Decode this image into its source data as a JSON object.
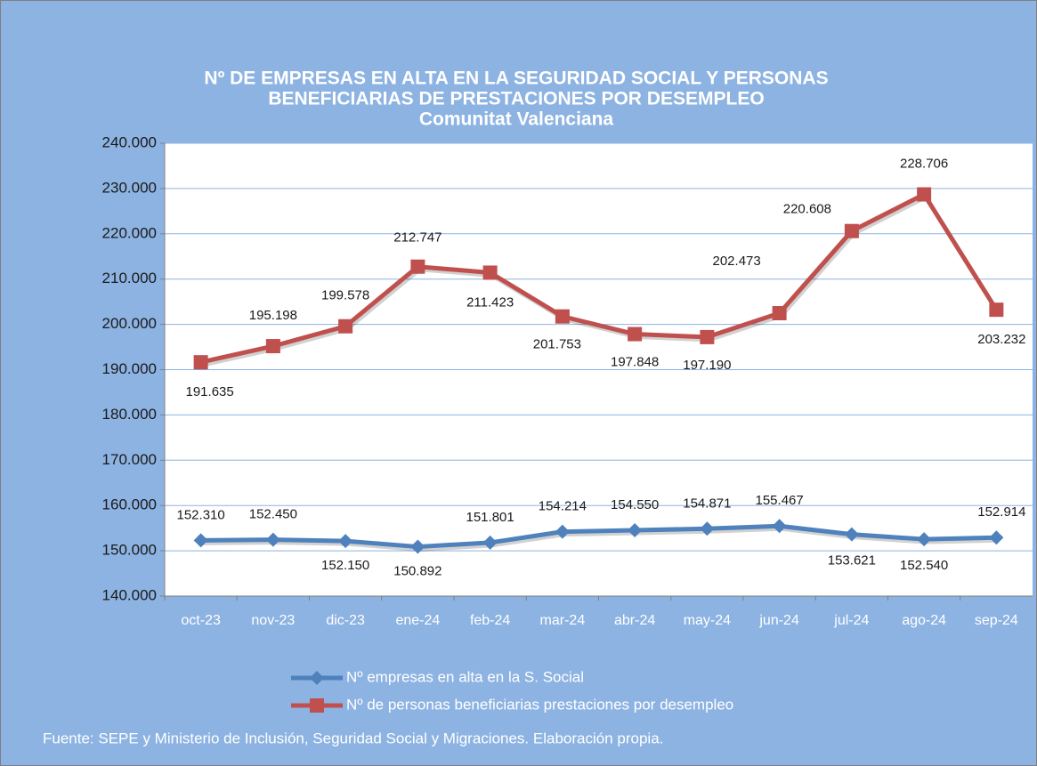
{
  "chart_data": {
    "type": "line",
    "title": [
      "Nº DE EMPRESAS EN ALTA EN LA SEGURIDAD SOCIAL Y PERSONAS",
      "BENEFICIARIAS DE PRESTACIONES POR DESEMPLEO"
    ],
    "subtitle": "Comunitat Valenciana",
    "categories": [
      "oct-23",
      "nov-23",
      "dic-23",
      "ene-24",
      "feb-24",
      "mar-24",
      "abr-24",
      "may-24",
      "jun-24",
      "jul-24",
      "ago-24",
      "sep-24"
    ],
    "series": [
      {
        "name": "Nº empresas en alta en la S. Social",
        "color": "#4f81bd",
        "marker": "diamond",
        "values": [
          152310,
          152450,
          152150,
          150892,
          151801,
          154214,
          154550,
          154871,
          155467,
          153621,
          152540,
          152914
        ],
        "value_labels": [
          "152.310",
          "152.450",
          "152.150",
          "150.892",
          "151.801",
          "154.214",
          "154.550",
          "154.871",
          "155.467",
          "153.621",
          "152.540",
          "152.914"
        ]
      },
      {
        "name": "Nº de personas beneficiarias prestaciones por desempleo",
        "color": "#c0504d",
        "marker": "square",
        "values": [
          191635,
          195198,
          199578,
          212747,
          211423,
          201753,
          197848,
          197190,
          202473,
          220608,
          228706,
          203232
        ],
        "value_labels": [
          "191.635",
          "195.198",
          "199.578",
          "212.747",
          "211.423",
          "201.753",
          "197.848",
          "197.190",
          "202.473",
          "220.608",
          "228.706",
          "203.232"
        ]
      }
    ],
    "ylim": [
      140000,
      240000
    ],
    "yticks": [
      {
        "value": 140000,
        "label": "140.000"
      },
      {
        "value": 150000,
        "label": "150.000"
      },
      {
        "value": 160000,
        "label": "160.000"
      },
      {
        "value": 170000,
        "label": "170.000"
      },
      {
        "value": 180000,
        "label": "180.000"
      },
      {
        "value": 190000,
        "label": "190.000"
      },
      {
        "value": 200000,
        "label": "200.000"
      },
      {
        "value": 210000,
        "label": "210.000"
      },
      {
        "value": 220000,
        "label": "220.000"
      },
      {
        "value": 230000,
        "label": "230.000"
      },
      {
        "value": 240000,
        "label": "240.000"
      }
    ],
    "grid": true,
    "legend": "bottom",
    "source": "Fuente: SEPE y Ministerio de Inclusión, Seguridad Social y Migraciones. Elaboración propia."
  }
}
